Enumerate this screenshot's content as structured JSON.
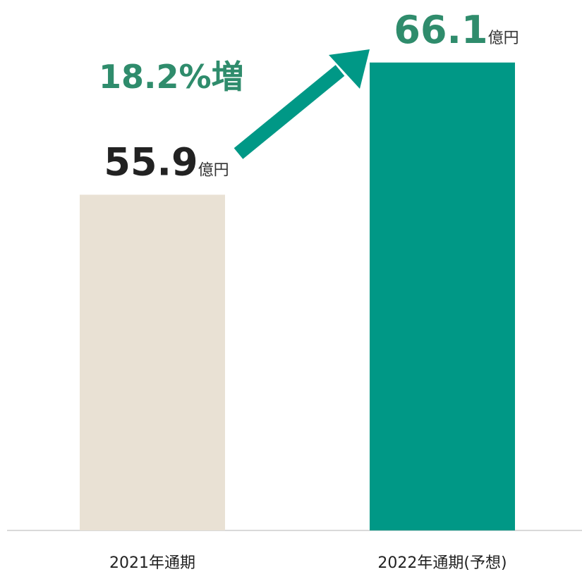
{
  "chart_data": {
    "type": "bar",
    "categories": [
      "2021年通期",
      "2022年通期(予想)"
    ],
    "values": [
      55.9,
      66.1
    ],
    "colors": [
      "#e9e1d4",
      "#009886"
    ],
    "value_label_colors": [
      "#222222",
      "#2f8c6c"
    ],
    "unit": "億円",
    "annotation": "18.2%増",
    "ylim": [
      30,
      70
    ]
  }
}
